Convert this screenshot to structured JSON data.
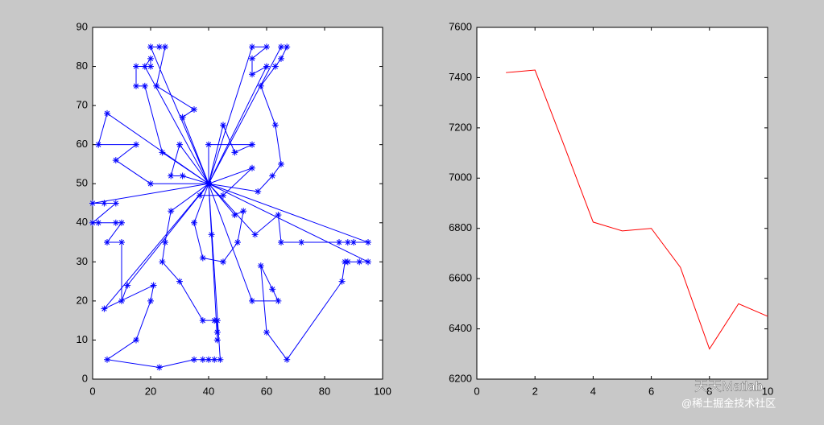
{
  "chart_data": [
    {
      "type": "route",
      "color": "#0000ff",
      "xlim": [
        0,
        100
      ],
      "xticks": [
        0,
        20,
        40,
        60,
        80,
        100
      ],
      "ylim": [
        0,
        90
      ],
      "yticks": [
        0,
        10,
        20,
        30,
        40,
        50,
        60,
        70,
        80,
        90
      ],
      "routes": [
        {
          "x": [
            40,
            55,
            60,
            55,
            55,
            60,
            40
          ],
          "y": [
            50,
            85,
            85,
            82,
            78,
            80,
            50
          ]
        },
        {
          "x": [
            40,
            65,
            67,
            65,
            63,
            58,
            63,
            65,
            62,
            57,
            40
          ],
          "y": [
            50,
            85,
            85,
            82,
            80,
            75,
            65,
            55,
            52,
            48,
            50
          ]
        },
        {
          "x": [
            40,
            20,
            23,
            25,
            22,
            35,
            31,
            40
          ],
          "y": [
            50,
            85,
            85,
            85,
            75,
            69,
            67,
            50
          ]
        },
        {
          "x": [
            40,
            18,
            20,
            20,
            15,
            15,
            18,
            24,
            40
          ],
          "y": [
            50,
            80,
            82,
            80,
            80,
            75,
            75,
            58,
            50
          ]
        },
        {
          "x": [
            40,
            5,
            2,
            15,
            8,
            20,
            40
          ],
          "y": [
            50,
            68,
            60,
            60,
            56,
            50,
            50
          ]
        },
        {
          "x": [
            40,
            40,
            55,
            49,
            45,
            40
          ],
          "y": [
            50,
            60,
            60,
            58,
            65,
            50
          ]
        },
        {
          "x": [
            40,
            0,
            4,
            8,
            0,
            2,
            8,
            10,
            5,
            10,
            10,
            12,
            40
          ],
          "y": [
            50,
            45,
            45,
            45,
            40,
            40,
            40,
            40,
            35,
            35,
            20,
            24,
            50
          ]
        },
        {
          "x": [
            40,
            4,
            21,
            20,
            15,
            5,
            23,
            35,
            38,
            40,
            42,
            44,
            40
          ],
          "y": [
            50,
            18,
            24,
            20,
            10,
            5,
            3,
            5,
            5,
            5,
            5,
            5,
            50
          ]
        },
        {
          "x": [
            40,
            30,
            27,
            31,
            40
          ],
          "y": [
            50,
            60,
            52,
            52,
            50
          ]
        },
        {
          "x": [
            40,
            27,
            25,
            24,
            30,
            38,
            42,
            43,
            43,
            43,
            41,
            40
          ],
          "y": [
            50,
            43,
            35,
            30,
            25,
            15,
            15,
            15,
            12,
            10,
            37,
            50
          ]
        },
        {
          "x": [
            40,
            35,
            38,
            45,
            50,
            52,
            49,
            40
          ],
          "y": [
            50,
            40,
            31,
            30,
            35,
            43,
            42,
            50
          ]
        },
        {
          "x": [
            40,
            95,
            90,
            88,
            85,
            72,
            65,
            64,
            56,
            40
          ],
          "y": [
            50,
            35,
            35,
            35,
            35,
            35,
            35,
            42,
            37,
            50
          ]
        },
        {
          "x": [
            40,
            95,
            92,
            88,
            87,
            86,
            67,
            60,
            58,
            62,
            64,
            55,
            40
          ],
          "y": [
            50,
            30,
            30,
            30,
            30,
            25,
            5,
            12,
            29,
            23,
            20,
            20,
            50
          ]
        },
        {
          "x": [
            40,
            55,
            45,
            37,
            40
          ],
          "y": [
            50,
            54,
            47,
            47,
            50
          ]
        }
      ]
    },
    {
      "type": "line",
      "color": "#ff0000",
      "xlim": [
        0,
        10
      ],
      "xticks": [
        0,
        2,
        4,
        6,
        8,
        10
      ],
      "ylim": [
        6200,
        7600
      ],
      "yticks": [
        6200,
        6400,
        6600,
        6800,
        7000,
        7200,
        7400,
        7600
      ],
      "x": [
        1,
        2,
        3,
        4,
        5,
        6,
        7,
        8,
        9,
        10
      ],
      "values": [
        7420,
        7430,
        7130,
        6825,
        6790,
        6800,
        6645,
        6320,
        6500,
        6450
      ]
    }
  ],
  "watermark": [
    "天天Matlab",
    "@稀土掘金技术社区"
  ]
}
